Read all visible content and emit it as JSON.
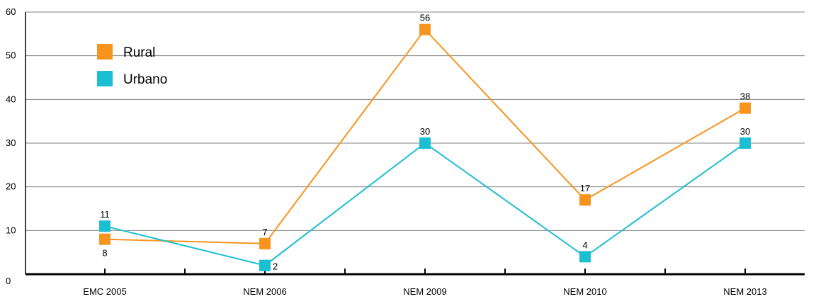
{
  "chart_data": {
    "type": "line",
    "categories": [
      "EMC 2005",
      "NEM 2006",
      "NEM 2009",
      "NEM 2010",
      "NEM 2013"
    ],
    "series": [
      {
        "name": "Rural",
        "color": "#F7941D",
        "values": [
          8,
          7,
          56,
          17,
          38
        ]
      },
      {
        "name": "Urbano",
        "color": "#1BBFD2",
        "values": [
          11,
          2,
          30,
          4,
          30
        ]
      }
    ],
    "yticks": [
      "0",
      "10",
      "20",
      "30",
      "40",
      "50",
      "60"
    ],
    "ylim": [
      0,
      60
    ],
    "grid": true,
    "legend_position": "top-left"
  }
}
